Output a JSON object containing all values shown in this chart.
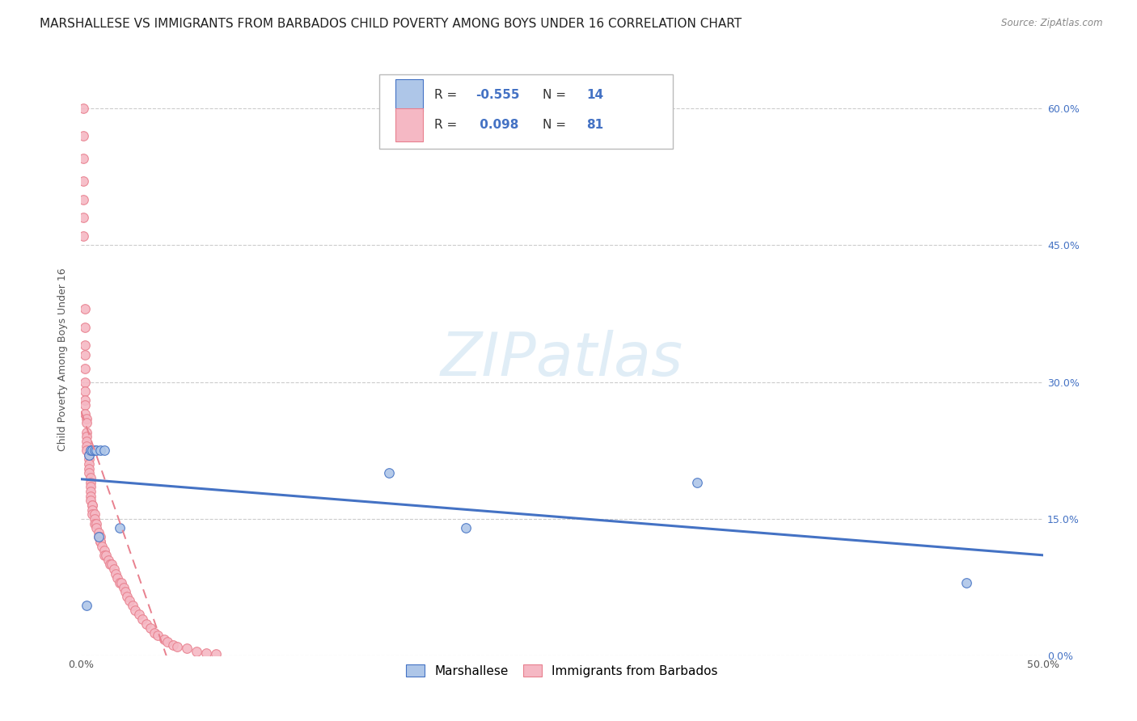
{
  "title": "MARSHALLESE VS IMMIGRANTS FROM BARBADOS CHILD POVERTY AMONG BOYS UNDER 16 CORRELATION CHART",
  "source": "Source: ZipAtlas.com",
  "ylabel": "Child Poverty Among Boys Under 16",
  "xlim": [
    0.0,
    0.5
  ],
  "ylim": [
    0.0,
    0.65
  ],
  "xticks": [
    0.0,
    0.05,
    0.1,
    0.15,
    0.2,
    0.25,
    0.3,
    0.35,
    0.4,
    0.45,
    0.5
  ],
  "yticks": [
    0.0,
    0.15,
    0.3,
    0.45,
    0.6
  ],
  "ytick_labels": [
    "0.0%",
    "15.0%",
    "30.0%",
    "45.0%",
    "60.0%"
  ],
  "xtick_labels": [
    "0.0%",
    "",
    "",
    "",
    "",
    "",
    "",
    "",
    "",
    "",
    "50.0%"
  ],
  "marshallese_R": -0.555,
  "marshallese_N": 14,
  "barbados_R": 0.098,
  "barbados_N": 81,
  "marshallese_color": "#aec6e8",
  "barbados_color": "#f5b8c4",
  "marshallese_edge_color": "#4472c4",
  "barbados_edge_color": "#e8808e",
  "marshallese_line_color": "#4472c4",
  "barbados_line_color": "#e8808e",
  "background_color": "#ffffff",
  "grid_color": "#cccccc",
  "title_fontsize": 11,
  "axis_fontsize": 9,
  "legend_fontsize": 11,
  "marker_size": 70,
  "marshallese_x": [
    0.003,
    0.004,
    0.005,
    0.006,
    0.007,
    0.008,
    0.009,
    0.01,
    0.012,
    0.02,
    0.16,
    0.2,
    0.32,
    0.46
  ],
  "marshallese_y": [
    0.055,
    0.22,
    0.225,
    0.225,
    0.225,
    0.225,
    0.13,
    0.225,
    0.225,
    0.14,
    0.2,
    0.14,
    0.19,
    0.08
  ],
  "barbados_x": [
    0.001,
    0.001,
    0.001,
    0.001,
    0.001,
    0.001,
    0.001,
    0.002,
    0.002,
    0.002,
    0.002,
    0.002,
    0.002,
    0.002,
    0.002,
    0.002,
    0.002,
    0.003,
    0.003,
    0.003,
    0.003,
    0.003,
    0.003,
    0.003,
    0.004,
    0.004,
    0.004,
    0.004,
    0.004,
    0.005,
    0.005,
    0.005,
    0.005,
    0.005,
    0.005,
    0.006,
    0.006,
    0.006,
    0.006,
    0.007,
    0.007,
    0.007,
    0.008,
    0.008,
    0.009,
    0.009,
    0.01,
    0.01,
    0.01,
    0.011,
    0.012,
    0.012,
    0.013,
    0.014,
    0.015,
    0.016,
    0.017,
    0.018,
    0.019,
    0.02,
    0.021,
    0.022,
    0.023,
    0.024,
    0.025,
    0.027,
    0.028,
    0.03,
    0.032,
    0.034,
    0.036,
    0.038,
    0.04,
    0.043,
    0.045,
    0.048,
    0.05,
    0.055,
    0.06,
    0.065,
    0.07
  ],
  "barbados_y": [
    0.6,
    0.57,
    0.545,
    0.52,
    0.5,
    0.48,
    0.46,
    0.38,
    0.36,
    0.34,
    0.33,
    0.315,
    0.3,
    0.29,
    0.28,
    0.275,
    0.265,
    0.26,
    0.255,
    0.245,
    0.24,
    0.235,
    0.23,
    0.225,
    0.22,
    0.215,
    0.21,
    0.205,
    0.2,
    0.195,
    0.19,
    0.185,
    0.18,
    0.175,
    0.17,
    0.165,
    0.165,
    0.16,
    0.155,
    0.155,
    0.15,
    0.145,
    0.145,
    0.14,
    0.135,
    0.13,
    0.13,
    0.125,
    0.125,
    0.12,
    0.115,
    0.11,
    0.11,
    0.105,
    0.1,
    0.1,
    0.095,
    0.09,
    0.085,
    0.08,
    0.08,
    0.075,
    0.07,
    0.065,
    0.06,
    0.055,
    0.05,
    0.045,
    0.04,
    0.035,
    0.03,
    0.025,
    0.022,
    0.018,
    0.015,
    0.012,
    0.01,
    0.008,
    0.005,
    0.003,
    0.002
  ]
}
